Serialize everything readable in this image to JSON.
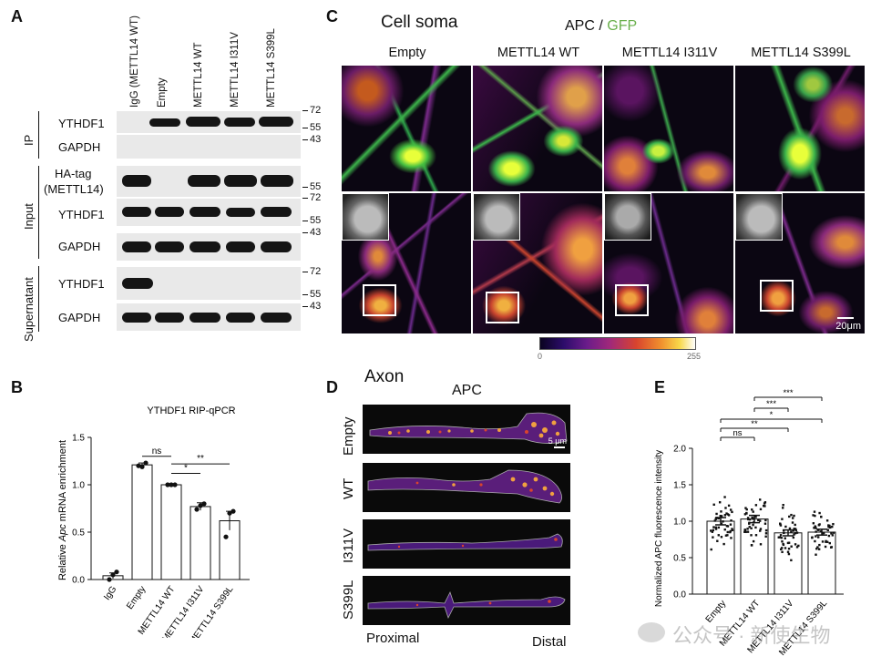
{
  "panel_a": {
    "letter": "A",
    "lanes": [
      "IgG (METTL14 WT)",
      "Empty",
      "METTL14 WT",
      "METTL14 I311V",
      "METTL14 S399L"
    ],
    "groups": [
      "IP",
      "Input",
      "Supernatant"
    ],
    "rows": {
      "ip_ythdf1": "YTHDF1",
      "ip_gapdh": "GAPDH",
      "input_ha_1": "HA-tag",
      "input_ha_2": "(METTL14)",
      "input_ythdf1": "YTHDF1",
      "input_gapdh": "GAPDH",
      "sup_ythdf1": "YTHDF1",
      "sup_gapdh": "GAPDH"
    },
    "mw": [
      "72",
      "55",
      "43",
      "55",
      "72",
      "55",
      "43",
      "72",
      "55",
      "43"
    ]
  },
  "panel_c": {
    "letter": "C",
    "subtitle": "Cell soma",
    "channel_apc": "APC",
    "channel_sep": " / ",
    "channel_gfp": "GFP",
    "gfp_color": "#6ab04c",
    "columns": [
      "Empty",
      "METTL14 WT",
      "METTL14 I311V",
      "METTL14 S399L"
    ],
    "scale_bar": "20μm",
    "colorbar_min": "0",
    "colorbar_max": "255"
  },
  "panel_d": {
    "letter": "D",
    "subtitle": "Axon",
    "channel": "APC",
    "rows": [
      "Empty",
      "WT",
      "I311V",
      "S399L"
    ],
    "scale_bar": "5 μm",
    "left_label": "Proximal",
    "right_label": "Distal"
  },
  "chart_data": [
    {
      "panel": "B",
      "type": "bar",
      "title": "YTHDF1 RIP-qPCR",
      "ylabel_pre": "Relative ",
      "ylabel_italic": "Apc",
      "ylabel_post": " mRNA enrichment",
      "categories": [
        "IgG",
        "Empty",
        "METTL14 WT",
        "METTL14 I311V",
        "METTL14 S399L"
      ],
      "values": [
        0.04,
        1.21,
        1.0,
        0.77,
        0.62
      ],
      "errors": [
        0.03,
        0.02,
        0.0,
        0.04,
        0.1
      ],
      "points": [
        [
          0.0,
          0.05,
          0.08
        ],
        [
          1.2,
          1.19,
          1.23
        ],
        [
          1.0,
          1.0,
          1.0
        ],
        [
          0.74,
          0.78,
          0.8
        ],
        [
          0.45,
          0.7,
          0.72
        ]
      ],
      "ylim": [
        0,
        1.5
      ],
      "yticks": [
        "0.0",
        "0.5",
        "1.0",
        "1.5"
      ],
      "significance": [
        {
          "from": 1,
          "to": 2,
          "label": "ns"
        },
        {
          "from": 2,
          "to": 3,
          "label": "*"
        },
        {
          "from": 2,
          "to": 4,
          "label": "**"
        }
      ]
    },
    {
      "panel": "E",
      "type": "bar",
      "title": "",
      "ylabel": "Normalized APC fluorescence intensity",
      "categories": [
        "Empty",
        "METTL14 WT",
        "METTL14 I311V",
        "METTL14 S399L"
      ],
      "values": [
        1.0,
        1.03,
        0.84,
        0.85
      ],
      "errors": [
        0.05,
        0.05,
        0.04,
        0.04
      ],
      "ylim": [
        0,
        2.0
      ],
      "yticks": [
        "0.0",
        "0.5",
        "1.0",
        "1.5",
        "2.0"
      ],
      "significance": [
        {
          "from": 0,
          "to": 1,
          "label": "ns"
        },
        {
          "from": 0,
          "to": 2,
          "label": "**"
        },
        {
          "from": 0,
          "to": 3,
          "label": "*"
        },
        {
          "from": 1,
          "to": 2,
          "label": "***"
        },
        {
          "from": 1,
          "to": 3,
          "label": "***"
        }
      ]
    }
  ],
  "watermark": "公众号 · 新使生物"
}
